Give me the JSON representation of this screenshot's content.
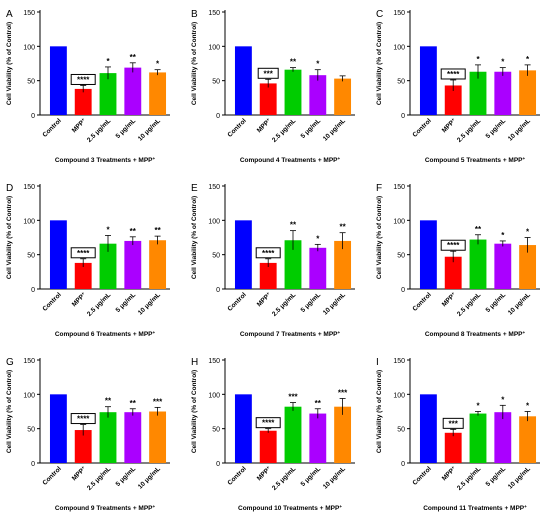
{
  "chart_data": [
    {
      "type": "bar",
      "panel": "A",
      "categories": [
        "Control",
        "MPP+",
        "2.5 μg/mL",
        "5 μg/mL",
        "10 μg/mL"
      ],
      "values": [
        100,
        38,
        61,
        69,
        62
      ],
      "errors": [
        0,
        5,
        9,
        7,
        4
      ],
      "significance": [
        "",
        "****",
        "*",
        "**",
        "*"
      ],
      "title": "",
      "xlabel": "Compound 3 Treatments + MPP+",
      "ylabel": "Cell Viability (% of Control)",
      "ylim": [
        0,
        150
      ],
      "yticks": [
        0,
        50,
        100,
        150
      ]
    },
    {
      "type": "bar",
      "panel": "B",
      "categories": [
        "Control",
        "MPP+",
        "2.5 μg/mL",
        "5 μg/mL",
        "10 μg/mL"
      ],
      "values": [
        100,
        46,
        66,
        58,
        53
      ],
      "errors": [
        0,
        6,
        3,
        8,
        4
      ],
      "significance": [
        "",
        "***",
        "**",
        "*",
        ""
      ],
      "title": "",
      "xlabel": "Compound 4 Treatments + MPP+",
      "ylabel": "Cell Viability (% of Control)",
      "ylim": [
        0,
        150
      ],
      "yticks": [
        0,
        50,
        100,
        150
      ]
    },
    {
      "type": "bar",
      "panel": "C",
      "categories": [
        "Control",
        "MPP+",
        "2.5 μg/mL",
        "5 μg/mL",
        "10 μg/mL"
      ],
      "values": [
        100,
        43,
        63,
        63,
        65
      ],
      "errors": [
        0,
        8,
        10,
        6,
        8
      ],
      "significance": [
        "",
        "****",
        "*",
        "*",
        "*"
      ],
      "title": "",
      "xlabel": "Compound 5 Treatments + MPP+",
      "ylabel": "Cell Viability (% of Control)",
      "ylim": [
        0,
        150
      ],
      "yticks": [
        0,
        50,
        100,
        150
      ]
    },
    {
      "type": "bar",
      "panel": "D",
      "categories": [
        "Control",
        "MPP+",
        "2.5 μg/mL",
        "5 μg/mL",
        "10 μg/mL"
      ],
      "values": [
        100,
        38,
        66,
        70,
        71
      ],
      "errors": [
        0,
        6,
        12,
        6,
        6
      ],
      "significance": [
        "",
        "****",
        "*",
        "**",
        "**"
      ],
      "title": "",
      "xlabel": "Compound 6 Treatments + MPP+",
      "ylabel": "Cell Viability (% of Control)",
      "ylim": [
        0,
        150
      ],
      "yticks": [
        0,
        50,
        100,
        150
      ]
    },
    {
      "type": "bar",
      "panel": "E",
      "categories": [
        "Control",
        "MPP+",
        "2.5 μg/mL",
        "5 μg/mL",
        "10 μg/mL"
      ],
      "values": [
        100,
        38,
        71,
        60,
        70
      ],
      "errors": [
        0,
        6,
        14,
        5,
        12
      ],
      "significance": [
        "",
        "****",
        "**",
        "*",
        "**"
      ],
      "title": "",
      "xlabel": "Compound 7 Treatments + MPP+",
      "ylabel": "Cell Viability (% of Control)",
      "ylim": [
        0,
        150
      ],
      "yticks": [
        0,
        50,
        100,
        150
      ]
    },
    {
      "type": "bar",
      "panel": "F",
      "categories": [
        "Control",
        "MPP+",
        "2.5 μg/mL",
        "5 μg/mL",
        "10 μg/mL"
      ],
      "values": [
        100,
        47,
        72,
        66,
        64
      ],
      "errors": [
        0,
        8,
        7,
        4,
        11
      ],
      "significance": [
        "",
        "****",
        "**",
        "*",
        "*"
      ],
      "title": "",
      "xlabel": "Compound 8 Treatments + MPP+",
      "ylabel": "Cell Viability (% of Control)",
      "ylim": [
        0,
        150
      ],
      "yticks": [
        0,
        50,
        100,
        150
      ]
    },
    {
      "type": "bar",
      "panel": "G",
      "categories": [
        "Control",
        "MPP+",
        "2.5 μg/mL",
        "5 μg/mL",
        "10 μg/mL"
      ],
      "values": [
        100,
        48,
        74,
        74,
        75
      ],
      "errors": [
        0,
        8,
        8,
        5,
        6
      ],
      "significance": [
        "",
        "****",
        "**",
        "**",
        "***"
      ],
      "title": "",
      "xlabel": "Compound 9 Treatments + MPP+",
      "ylabel": "Cell Viability (% of Control)",
      "ylim": [
        0,
        150
      ],
      "yticks": [
        0,
        50,
        100,
        150
      ]
    },
    {
      "type": "bar",
      "panel": "H",
      "categories": [
        "Control",
        "MPP+",
        "2.5 μg/mL",
        "5 μg/mL",
        "10 μg/mL"
      ],
      "values": [
        100,
        47,
        82,
        72,
        82
      ],
      "errors": [
        0,
        3,
        6,
        7,
        12
      ],
      "significance": [
        "",
        "****",
        "***",
        "**",
        "***"
      ],
      "title": "",
      "xlabel": "Compound 10 Treatments + MPP+",
      "ylabel": "Cell Viability (% of Control)",
      "ylim": [
        0,
        150
      ],
      "yticks": [
        0,
        50,
        100,
        150
      ]
    },
    {
      "type": "bar",
      "panel": "I",
      "categories": [
        "Control",
        "MPP+",
        "2.5 μg/mL",
        "5 μg/mL",
        "10 μg/mL"
      ],
      "values": [
        100,
        44,
        72,
        74,
        68
      ],
      "errors": [
        0,
        5,
        3,
        10,
        7
      ],
      "significance": [
        "",
        "***",
        "*",
        "*",
        "*"
      ],
      "title": "",
      "xlabel": "Compound 11 Treatments + MPP+",
      "ylabel": "Cell Viability (% of Control)",
      "ylim": [
        0,
        150
      ],
      "yticks": [
        0,
        50,
        100,
        150
      ]
    }
  ],
  "bar_colors": [
    "#0000ff",
    "#ff0000",
    "#00cc00",
    "#aa00ff",
    "#ff8800"
  ]
}
